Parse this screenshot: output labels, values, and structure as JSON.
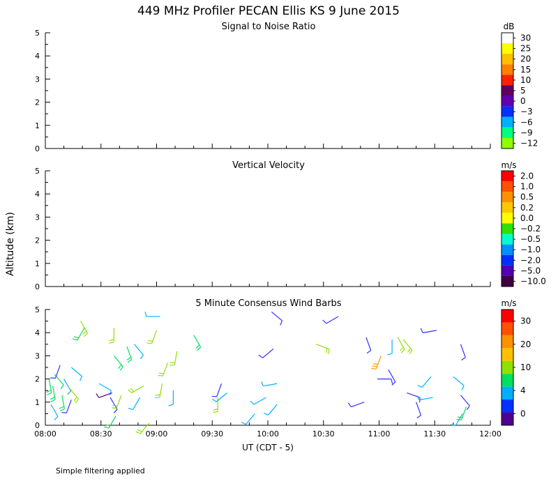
{
  "title": "449 MHz Profiler PECAN Ellis KS  9 June 2015",
  "ylabel": "Altitude (km)",
  "xlabel": "UT  (CDT - 5)",
  "footnote": "Simple filtering applied",
  "chart_data": [
    {
      "type": "heatmap",
      "title": "Signal to Noise Ratio",
      "ylim": [
        0,
        5
      ],
      "yticks": [
        "0",
        "1",
        "2",
        "3",
        "4",
        "5"
      ],
      "colorbar": {
        "unit": "dB",
        "labels": [
          "30",
          "25",
          "20",
          "15",
          "10",
          "5",
          "0",
          "−3",
          "−6",
          "−9",
          "−12"
        ],
        "colors": [
          "#ffffff",
          "#ffff00",
          "#ffc000",
          "#ff8000",
          "#ff2000",
          "#600060",
          "#6000b0",
          "#0030ff",
          "#00b0ff",
          "#00ff80",
          "#90ff00"
        ]
      },
      "values": []
    },
    {
      "type": "heatmap",
      "title": "Vertical Velocity",
      "ylim": [
        0,
        5
      ],
      "yticks": [
        "0",
        "1",
        "2",
        "3",
        "4",
        "5"
      ],
      "colorbar": {
        "unit": "m/s",
        "labels": [
          "2.0",
          "1.0",
          "0.5",
          "0.2",
          "0.0",
          "−0.2",
          "−0.5",
          "−1.0",
          "−2.0",
          "−5.0",
          "−10.0"
        ],
        "colors": [
          "#ff0000",
          "#ff5000",
          "#ff9000",
          "#ffc800",
          "#ffff00",
          "#30e000",
          "#00ffd0",
          "#0090ff",
          "#0030ff",
          "#5000b0",
          "#400040"
        ]
      },
      "values": []
    },
    {
      "type": "scatter",
      "title": "5 Minute Consensus Wind Barbs",
      "ylim": [
        0,
        5
      ],
      "yticks": [
        "0",
        "1",
        "2",
        "3",
        "4",
        "5"
      ],
      "colorbar": {
        "unit": "m/s",
        "labels": [
          "30",
          "20",
          "10",
          "4",
          "0"
        ],
        "colors": [
          "#ff0000",
          "#ff5000",
          "#ff9000",
          "#ffc000",
          "#90e000",
          "#00e060",
          "#00b0ff",
          "#0030ff",
          "#500090"
        ]
      },
      "xlim": [
        "08:00",
        "12:00"
      ],
      "xticks": [
        "08:00",
        "08:30",
        "09:00",
        "09:30",
        "10:00",
        "10:30",
        "11:00",
        "11:30",
        "12:00"
      ],
      "barbs": [
        {
          "t": "08:02",
          "alt": 2.0,
          "dir": 170,
          "speed": 9
        },
        {
          "t": "08:05",
          "alt": 2.2,
          "dir": 140,
          "speed": 7
        },
        {
          "t": "08:04",
          "alt": 1.7,
          "dir": 170,
          "speed": 9
        },
        {
          "t": "08:03",
          "alt": 0.9,
          "dir": 150,
          "speed": 5
        },
        {
          "t": "08:08",
          "alt": 2.6,
          "dir": 200,
          "speed": 2
        },
        {
          "t": "08:10",
          "alt": 2.0,
          "dir": 150,
          "speed": 4
        },
        {
          "t": "08:09",
          "alt": 1.3,
          "dir": 170,
          "speed": 9
        },
        {
          "t": "08:13",
          "alt": 1.6,
          "dir": 140,
          "speed": 12
        },
        {
          "t": "08:14",
          "alt": 1.1,
          "dir": 200,
          "speed": 2
        },
        {
          "t": "08:14",
          "alt": 2.5,
          "dir": 130,
          "speed": 4
        },
        {
          "t": "08:19",
          "alt": 4.5,
          "dir": 150,
          "speed": 10
        },
        {
          "t": "08:21",
          "alt": 4.2,
          "dir": 210,
          "speed": 8
        },
        {
          "t": "08:29",
          "alt": 1.8,
          "dir": 120,
          "speed": 5
        },
        {
          "t": "08:35",
          "alt": 1.2,
          "dir": 150,
          "speed": 2
        },
        {
          "t": "08:36",
          "alt": 1.4,
          "dir": 250,
          "speed": 1
        },
        {
          "t": "08:38",
          "alt": 0.4,
          "dir": 210,
          "speed": 9
        },
        {
          "t": "08:41",
          "alt": 1.3,
          "dir": 200,
          "speed": 11
        },
        {
          "t": "08:37",
          "alt": 4.2,
          "dir": 180,
          "speed": 10
        },
        {
          "t": "08:37",
          "alt": 3.0,
          "dir": 140,
          "speed": 8
        },
        {
          "t": "08:44",
          "alt": 3.4,
          "dir": 160,
          "speed": 9
        },
        {
          "t": "08:48",
          "alt": 3.5,
          "dir": 140,
          "speed": 4
        },
        {
          "t": "08:51",
          "alt": 1.2,
          "dir": 210,
          "speed": 5
        },
        {
          "t": "08:53",
          "alt": 1.7,
          "dir": 240,
          "speed": 11
        },
        {
          "t": "08:56",
          "alt": 0.1,
          "dir": 220,
          "speed": 12
        },
        {
          "t": "09:00",
          "alt": 4.1,
          "dir": 200,
          "speed": 10
        },
        {
          "t": "09:02",
          "alt": 4.7,
          "dir": 270,
          "speed": 6
        },
        {
          "t": "09:03",
          "alt": 1.8,
          "dir": 190,
          "speed": 10
        },
        {
          "t": "09:06",
          "alt": 2.7,
          "dir": 200,
          "speed": 10
        },
        {
          "t": "09:09",
          "alt": 1.5,
          "dir": 180,
          "speed": 5
        },
        {
          "t": "09:11",
          "alt": 3.2,
          "dir": 190,
          "speed": 11
        },
        {
          "t": "09:20",
          "alt": 3.9,
          "dir": 150,
          "speed": 9
        },
        {
          "t": "09:33",
          "alt": 1.2,
          "dir": 180,
          "speed": 10
        },
        {
          "t": "09:35",
          "alt": 1.8,
          "dir": 200,
          "speed": 2
        },
        {
          "t": "09:38",
          "alt": 1.4,
          "dir": 230,
          "speed": 5
        },
        {
          "t": "09:53",
          "alt": 0.5,
          "dir": 220,
          "speed": 5
        },
        {
          "t": "09:59",
          "alt": 1.2,
          "dir": 240,
          "speed": 5
        },
        {
          "t": "10:03",
          "alt": 3.3,
          "dir": 230,
          "speed": 2
        },
        {
          "t": "10:05",
          "alt": 1.8,
          "dir": 260,
          "speed": 5
        },
        {
          "t": "10:02",
          "alt": 4.9,
          "dir": 130,
          "speed": 3
        },
        {
          "t": "10:05",
          "alt": 0.9,
          "dir": 220,
          "speed": 5
        },
        {
          "t": "10:26",
          "alt": 3.5,
          "dir": 110,
          "speed": 11
        },
        {
          "t": "10:38",
          "alt": 4.7,
          "dir": 240,
          "speed": 2
        },
        {
          "t": "10:53",
          "alt": 3.8,
          "dir": 160,
          "speed": 2
        },
        {
          "t": "10:52",
          "alt": 1.0,
          "dir": 250,
          "speed": 2
        },
        {
          "t": "10:59",
          "alt": 2.0,
          "dir": 90,
          "speed": 2
        },
        {
          "t": "11:01",
          "alt": 3.0,
          "dir": 200,
          "speed": 18
        },
        {
          "t": "11:05",
          "alt": 2.4,
          "dir": 150,
          "speed": 3
        },
        {
          "t": "11:07",
          "alt": 3.7,
          "dir": 180,
          "speed": 5
        },
        {
          "t": "11:10",
          "alt": 3.8,
          "dir": 150,
          "speed": 10
        },
        {
          "t": "11:13",
          "alt": 3.7,
          "dir": 140,
          "speed": 11
        },
        {
          "t": "11:15",
          "alt": 1.4,
          "dir": 110,
          "speed": 2
        },
        {
          "t": "11:20",
          "alt": 1.0,
          "dir": 160,
          "speed": 2
        },
        {
          "t": "11:28",
          "alt": 2.1,
          "dir": 220,
          "speed": 5
        },
        {
          "t": "11:29",
          "alt": 1.2,
          "dir": 260,
          "speed": 5
        },
        {
          "t": "11:31",
          "alt": 4.1,
          "dir": 260,
          "speed": 2
        },
        {
          "t": "11:40",
          "alt": 2.1,
          "dir": 130,
          "speed": 5
        },
        {
          "t": "11:44",
          "alt": 3.5,
          "dir": 160,
          "speed": 2
        },
        {
          "t": "11:44",
          "alt": 1.3,
          "dir": 140,
          "speed": 2
        },
        {
          "t": "11:45",
          "alt": 0.5,
          "dir": 210,
          "speed": 5
        },
        {
          "t": "11:47",
          "alt": 0.8,
          "dir": 200,
          "speed": 9
        }
      ]
    }
  ]
}
